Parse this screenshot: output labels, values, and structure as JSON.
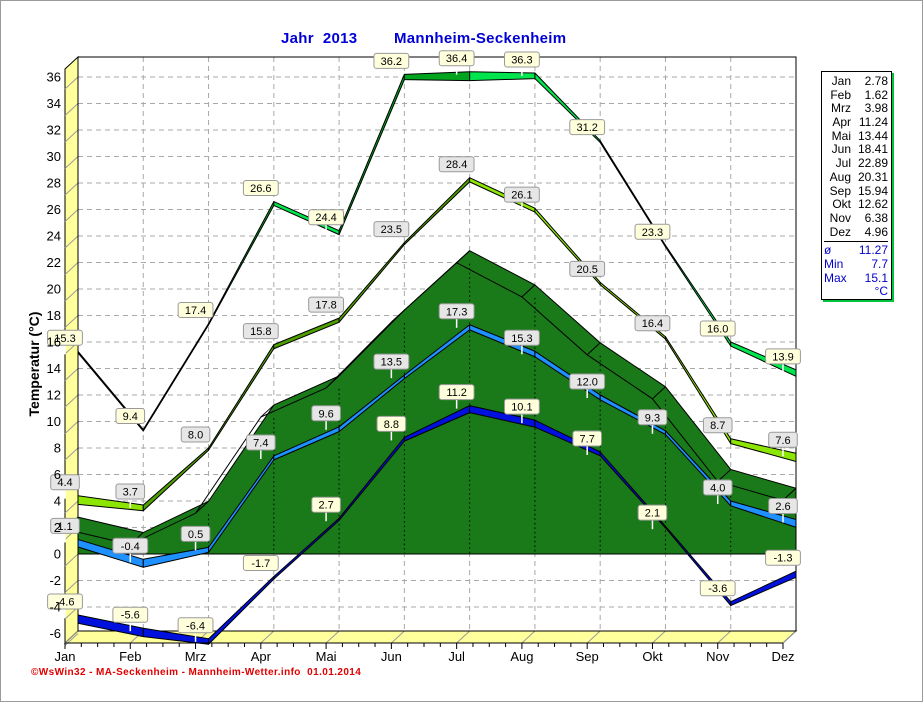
{
  "header": {
    "year_title": "Jahr  2013",
    "station_title": "Mannheim-Seckenheim"
  },
  "footer": {
    "copyright": "©WsWin32 - MA-Seckenheim - Mannheim-Wetter.info  01.01.2014"
  },
  "legend_panel": {
    "rows": [
      {
        "label": "Jan",
        "value": "2.78"
      },
      {
        "label": "Feb",
        "value": "1.62"
      },
      {
        "label": "Mrz",
        "value": "3.98"
      },
      {
        "label": "Apr",
        "value": "11.24"
      },
      {
        "label": "Mai",
        "value": "13.44"
      },
      {
        "label": "Jun",
        "value": "18.41"
      },
      {
        "label": "Jul",
        "value": "22.89"
      },
      {
        "label": "Aug",
        "value": "20.31"
      },
      {
        "label": "Sep",
        "value": "15.94"
      },
      {
        "label": "Okt",
        "value": "12.62"
      },
      {
        "label": "Nov",
        "value": "6.38"
      },
      {
        "label": "Dez",
        "value": "4.96"
      }
    ],
    "summary": [
      {
        "label": "ø",
        "value": "11.27"
      },
      {
        "label": "Min",
        "value": "7.7"
      },
      {
        "label": "Max",
        "value": "15.1"
      }
    ],
    "unit": "°C"
  },
  "chart_data": {
    "type": "line",
    "title": "Jahr 2013",
    "subtitle": "Mannheim-Seckenheim",
    "ylabel": "Temperatur  (°C)",
    "ylim": [
      -6.1,
      37.5
    ],
    "ytick_min": -6,
    "ytick_max": 36,
    "ytick_step": 2,
    "grid": true,
    "legend_position": "right",
    "categories": [
      "Jan",
      "Feb",
      "Mrz",
      "Apr",
      "Mai",
      "Jun",
      "Jul",
      "Aug",
      "Sep",
      "Okt",
      "Nov",
      "Dez"
    ],
    "series": [
      {
        "name": "max",
        "style": "band",
        "color_down": "#00E44E",
        "color_up": "#00A41E",
        "label_bg": "#FFFFDC",
        "values": [
          "15.3",
          "9.4",
          "17.4",
          "26.6",
          "24.4",
          "36.2",
          "36.4",
          "36.3",
          "31.2",
          "23.3",
          "16.0",
          "13.9"
        ]
      },
      {
        "name": "upper-mid",
        "style": "band",
        "color_down": "#8DE503",
        "color_up": "#4F9E00",
        "label_bg": "#E6E6E6",
        "values": [
          "4.4",
          "3.7",
          "8.0",
          "15.8",
          "17.8",
          "23.5",
          "28.4",
          "26.1",
          "20.5",
          "16.4",
          "8.7",
          "7.6"
        ]
      },
      {
        "name": "lower-mid",
        "style": "band",
        "color_down": "#1E90FF",
        "color_up": "#1E90FF",
        "label_bg": "#E6E6E6",
        "values": [
          "1.1",
          "-0.4",
          "0.5",
          "7.4",
          "9.6",
          "13.5",
          "17.3",
          "15.3",
          "12.0",
          "9.3",
          "4.0",
          "2.6"
        ]
      },
      {
        "name": "min",
        "style": "band",
        "color_down": "#0011DD",
        "color_up": "#0011DD",
        "label_bg": "#FFFFDC",
        "values": [
          "-4.6",
          "-5.6",
          "-6.4",
          "-1.7",
          "2.7",
          "8.8",
          "11.2",
          "10.1",
          "7.7",
          "2.1",
          "-3.6",
          "-1.3"
        ]
      },
      {
        "name": "mean-area",
        "style": "area",
        "color": "#1A7A1A",
        "side_color": "#0D5E0D",
        "values": [
          2.78,
          1.62,
          3.98,
          11.24,
          13.44,
          18.41,
          22.89,
          20.31,
          15.94,
          12.62,
          6.38,
          4.96
        ]
      }
    ],
    "colors": {
      "wall": "#FFFF9C",
      "grid": "#A8A8A8",
      "frame": "#000000",
      "title_blue": "#0000D6",
      "copyright_red": "#E00000",
      "label_stem": "#FFFFFF"
    }
  }
}
